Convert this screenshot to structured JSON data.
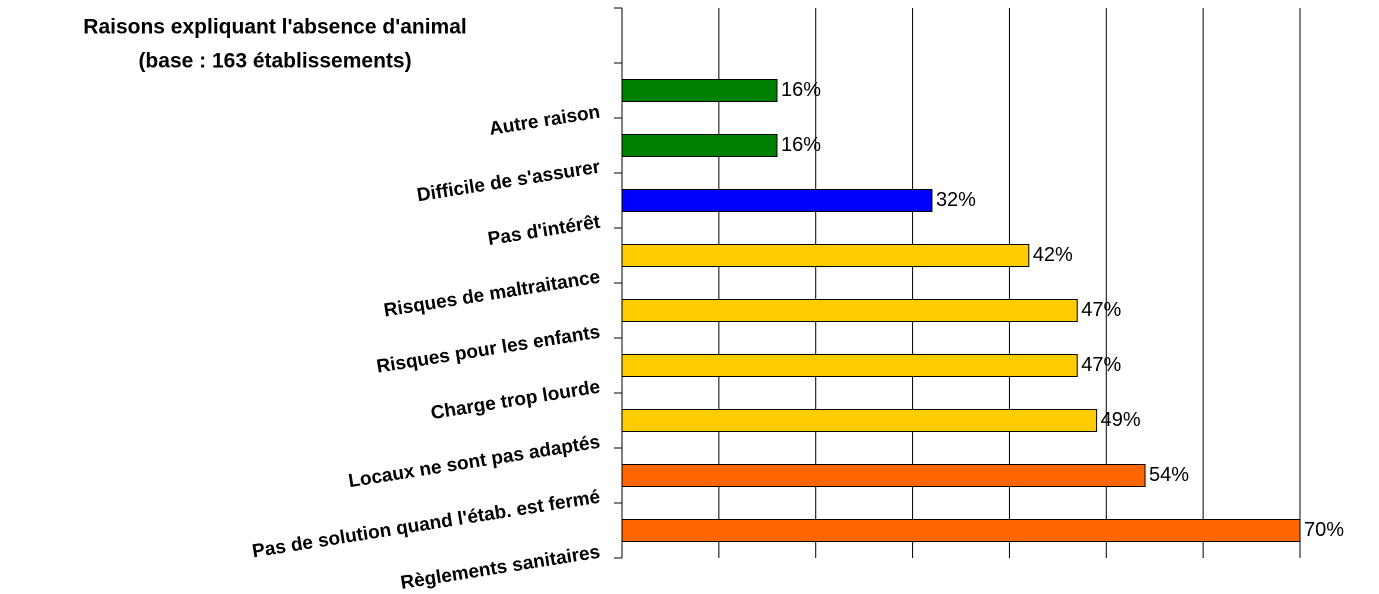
{
  "chart_data": {
    "type": "bar",
    "orientation": "horizontal",
    "title": [
      "Raisons expliquant l'absence d'animal",
      "(base : 163 établissements)"
    ],
    "categories": [
      "Autre raison",
      "Difficile de s'assurer",
      "Pas d'intérêt",
      "Risques de maltraitance",
      "Risques pour les enfants",
      "Charge trop lourde",
      "Locaux ne sont pas adaptés",
      "Pas de solution quand l'étab. est fermé",
      "Règlements sanitaires"
    ],
    "values": [
      16,
      16,
      32,
      42,
      47,
      47,
      49,
      54,
      70
    ],
    "value_labels": [
      "16%",
      "16%",
      "32%",
      "42%",
      "47%",
      "47%",
      "49%",
      "54%",
      "70%"
    ],
    "colors": [
      "#008000",
      "#008000",
      "#0000ff",
      "#ffcc00",
      "#ffcc00",
      "#ffcc00",
      "#ffcc00",
      "#ff6600",
      "#ff6600"
    ],
    "xlim": [
      0,
      70
    ],
    "xticks": [
      0,
      10,
      20,
      30,
      40,
      50,
      60,
      70
    ],
    "grid": true
  }
}
